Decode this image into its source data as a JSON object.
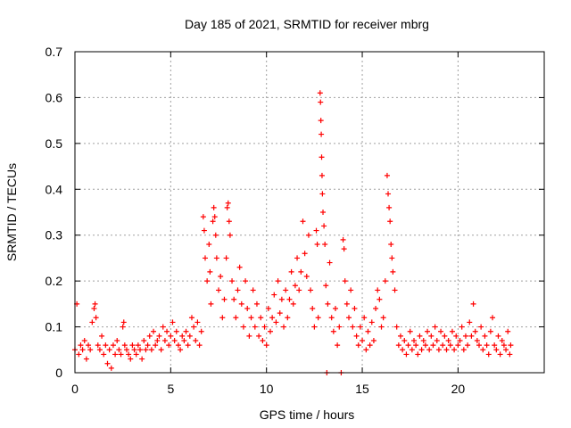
{
  "chart_data": {
    "type": "scatter",
    "title": "Day 185 of 2021, SRMTID for receiver mbrg",
    "xlabel": "GPS time / hours",
    "ylabel": "SRMTID / TECUs",
    "xlim": [
      0,
      24.5
    ],
    "ylim": [
      0,
      0.7
    ],
    "xticks": [
      0,
      5,
      10,
      15,
      20
    ],
    "xtick_labels": [
      "0",
      "5",
      "10",
      "15",
      "20"
    ],
    "yticks": [
      0,
      0.1,
      0.2,
      0.3,
      0.4,
      0.5,
      0.6,
      0.7
    ],
    "ytick_labels": [
      "0",
      "0.1",
      "0.2",
      "0.3",
      "0.4",
      "0.5",
      "0.6",
      "0.7"
    ],
    "grid": true,
    "marker": "+",
    "color": "#ff0000",
    "series": [
      {
        "name": "SRMTID",
        "points": [
          [
            0.0,
            0.05
          ],
          [
            0.1,
            0.15
          ],
          [
            0.2,
            0.04
          ],
          [
            0.3,
            0.06
          ],
          [
            0.4,
            0.05
          ],
          [
            0.5,
            0.07
          ],
          [
            0.6,
            0.03
          ],
          [
            0.7,
            0.06
          ],
          [
            0.8,
            0.05
          ],
          [
            0.9,
            0.11
          ],
          [
            1.0,
            0.14
          ],
          [
            1.05,
            0.15
          ],
          [
            1.1,
            0.12
          ],
          [
            1.2,
            0.06
          ],
          [
            1.3,
            0.05
          ],
          [
            1.4,
            0.08
          ],
          [
            1.5,
            0.04
          ],
          [
            1.6,
            0.06
          ],
          [
            1.7,
            0.02
          ],
          [
            1.8,
            0.05
          ],
          [
            1.9,
            0.01
          ],
          [
            2.0,
            0.06
          ],
          [
            2.1,
            0.04
          ],
          [
            2.2,
            0.07
          ],
          [
            2.3,
            0.05
          ],
          [
            2.4,
            0.04
          ],
          [
            2.5,
            0.1
          ],
          [
            2.55,
            0.11
          ],
          [
            2.6,
            0.06
          ],
          [
            2.7,
            0.05
          ],
          [
            2.8,
            0.04
          ],
          [
            2.9,
            0.03
          ],
          [
            3.0,
            0.06
          ],
          [
            3.1,
            0.05
          ],
          [
            3.2,
            0.04
          ],
          [
            3.3,
            0.06
          ],
          [
            3.4,
            0.05
          ],
          [
            3.5,
            0.03
          ],
          [
            3.6,
            0.07
          ],
          [
            3.7,
            0.05
          ],
          [
            3.8,
            0.06
          ],
          [
            3.9,
            0.08
          ],
          [
            4.0,
            0.05
          ],
          [
            4.1,
            0.09
          ],
          [
            4.2,
            0.06
          ],
          [
            4.3,
            0.07
          ],
          [
            4.4,
            0.08
          ],
          [
            4.5,
            0.05
          ],
          [
            4.6,
            0.1
          ],
          [
            4.7,
            0.07
          ],
          [
            4.8,
            0.09
          ],
          [
            4.9,
            0.06
          ],
          [
            5.0,
            0.08
          ],
          [
            5.1,
            0.11
          ],
          [
            5.2,
            0.07
          ],
          [
            5.3,
            0.09
          ],
          [
            5.4,
            0.06
          ],
          [
            5.5,
            0.05
          ],
          [
            5.6,
            0.08
          ],
          [
            5.7,
            0.07
          ],
          [
            5.8,
            0.09
          ],
          [
            5.9,
            0.06
          ],
          [
            6.0,
            0.08
          ],
          [
            6.1,
            0.12
          ],
          [
            6.2,
            0.1
          ],
          [
            6.3,
            0.07
          ],
          [
            6.4,
            0.11
          ],
          [
            6.5,
            0.06
          ],
          [
            6.6,
            0.09
          ],
          [
            6.7,
            0.34
          ],
          [
            6.75,
            0.31
          ],
          [
            6.8,
            0.25
          ],
          [
            6.9,
            0.2
          ],
          [
            7.0,
            0.28
          ],
          [
            7.05,
            0.22
          ],
          [
            7.1,
            0.15
          ],
          [
            7.2,
            0.33
          ],
          [
            7.25,
            0.36
          ],
          [
            7.3,
            0.34
          ],
          [
            7.35,
            0.3
          ],
          [
            7.4,
            0.25
          ],
          [
            7.5,
            0.18
          ],
          [
            7.6,
            0.21
          ],
          [
            7.7,
            0.12
          ],
          [
            7.8,
            0.16
          ],
          [
            7.9,
            0.25
          ],
          [
            7.95,
            0.36
          ],
          [
            8.0,
            0.37
          ],
          [
            8.05,
            0.33
          ],
          [
            8.1,
            0.3
          ],
          [
            8.2,
            0.2
          ],
          [
            8.3,
            0.16
          ],
          [
            8.4,
            0.12
          ],
          [
            8.5,
            0.18
          ],
          [
            8.6,
            0.23
          ],
          [
            8.7,
            0.15
          ],
          [
            8.8,
            0.1
          ],
          [
            8.9,
            0.2
          ],
          [
            9.0,
            0.14
          ],
          [
            9.1,
            0.08
          ],
          [
            9.2,
            0.12
          ],
          [
            9.3,
            0.18
          ],
          [
            9.4,
            0.1
          ],
          [
            9.5,
            0.15
          ],
          [
            9.6,
            0.08
          ],
          [
            9.7,
            0.12
          ],
          [
            9.8,
            0.07
          ],
          [
            9.9,
            0.1
          ],
          [
            10.0,
            0.06
          ],
          [
            10.1,
            0.14
          ],
          [
            10.2,
            0.09
          ],
          [
            10.3,
            0.12
          ],
          [
            10.4,
            0.17
          ],
          [
            10.5,
            0.11
          ],
          [
            10.6,
            0.2
          ],
          [
            10.7,
            0.13
          ],
          [
            10.8,
            0.16
          ],
          [
            10.9,
            0.1
          ],
          [
            11.0,
            0.18
          ],
          [
            11.1,
            0.12
          ],
          [
            11.2,
            0.16
          ],
          [
            11.3,
            0.22
          ],
          [
            11.4,
            0.15
          ],
          [
            11.5,
            0.19
          ],
          [
            11.6,
            0.25
          ],
          [
            11.7,
            0.18
          ],
          [
            11.8,
            0.22
          ],
          [
            11.9,
            0.33
          ],
          [
            12.0,
            0.26
          ],
          [
            12.1,
            0.21
          ],
          [
            12.2,
            0.3
          ],
          [
            12.3,
            0.18
          ],
          [
            12.4,
            0.14
          ],
          [
            12.5,
            0.1
          ],
          [
            12.6,
            0.31
          ],
          [
            12.65,
            0.28
          ],
          [
            12.7,
            0.12
          ],
          [
            12.8,
            0.61
          ],
          [
            12.82,
            0.59
          ],
          [
            12.84,
            0.55
          ],
          [
            12.86,
            0.52
          ],
          [
            12.88,
            0.47
          ],
          [
            12.9,
            0.43
          ],
          [
            12.92,
            0.39
          ],
          [
            12.95,
            0.35
          ],
          [
            13.0,
            0.32
          ],
          [
            13.05,
            0.28
          ],
          [
            13.1,
            0.19
          ],
          [
            13.15,
            0.0
          ],
          [
            13.2,
            0.15
          ],
          [
            13.3,
            0.24
          ],
          [
            13.4,
            0.12
          ],
          [
            13.5,
            0.09
          ],
          [
            13.6,
            0.14
          ],
          [
            13.7,
            0.06
          ],
          [
            13.8,
            0.1
          ],
          [
            13.9,
            0.0
          ],
          [
            14.0,
            0.29
          ],
          [
            14.05,
            0.27
          ],
          [
            14.1,
            0.2
          ],
          [
            14.2,
            0.15
          ],
          [
            14.3,
            0.12
          ],
          [
            14.4,
            0.18
          ],
          [
            14.5,
            0.1
          ],
          [
            14.6,
            0.14
          ],
          [
            14.7,
            0.08
          ],
          [
            14.8,
            0.06
          ],
          [
            14.9,
            0.1
          ],
          [
            15.0,
            0.07
          ],
          [
            15.1,
            0.12
          ],
          [
            15.2,
            0.05
          ],
          [
            15.3,
            0.09
          ],
          [
            15.4,
            0.06
          ],
          [
            15.5,
            0.11
          ],
          [
            15.6,
            0.07
          ],
          [
            15.7,
            0.14
          ],
          [
            15.8,
            0.18
          ],
          [
            15.9,
            0.16
          ],
          [
            16.0,
            0.1
          ],
          [
            16.1,
            0.12
          ],
          [
            16.2,
            0.2
          ],
          [
            16.3,
            0.43
          ],
          [
            16.35,
            0.39
          ],
          [
            16.4,
            0.36
          ],
          [
            16.45,
            0.33
          ],
          [
            16.5,
            0.28
          ],
          [
            16.55,
            0.25
          ],
          [
            16.6,
            0.22
          ],
          [
            16.7,
            0.18
          ],
          [
            16.8,
            0.1
          ],
          [
            16.9,
            0.06
          ],
          [
            17.0,
            0.08
          ],
          [
            17.1,
            0.05
          ],
          [
            17.2,
            0.07
          ],
          [
            17.3,
            0.04
          ],
          [
            17.4,
            0.06
          ],
          [
            17.5,
            0.09
          ],
          [
            17.6,
            0.05
          ],
          [
            17.7,
            0.07
          ],
          [
            17.8,
            0.06
          ],
          [
            17.9,
            0.04
          ],
          [
            18.0,
            0.08
          ],
          [
            18.1,
            0.05
          ],
          [
            18.2,
            0.07
          ],
          [
            18.3,
            0.06
          ],
          [
            18.4,
            0.09
          ],
          [
            18.5,
            0.05
          ],
          [
            18.6,
            0.08
          ],
          [
            18.7,
            0.06
          ],
          [
            18.8,
            0.1
          ],
          [
            18.9,
            0.07
          ],
          [
            19.0,
            0.05
          ],
          [
            19.1,
            0.09
          ],
          [
            19.2,
            0.06
          ],
          [
            19.3,
            0.08
          ],
          [
            19.4,
            0.05
          ],
          [
            19.5,
            0.07
          ],
          [
            19.6,
            0.06
          ],
          [
            19.7,
            0.09
          ],
          [
            19.8,
            0.05
          ],
          [
            19.9,
            0.08
          ],
          [
            20.0,
            0.06
          ],
          [
            20.1,
            0.07
          ],
          [
            20.2,
            0.1
          ],
          [
            20.3,
            0.05
          ],
          [
            20.4,
            0.08
          ],
          [
            20.5,
            0.06
          ],
          [
            20.6,
            0.11
          ],
          [
            20.7,
            0.08
          ],
          [
            20.8,
            0.15
          ],
          [
            20.9,
            0.09
          ],
          [
            21.0,
            0.07
          ],
          [
            21.1,
            0.06
          ],
          [
            21.2,
            0.1
          ],
          [
            21.3,
            0.05
          ],
          [
            21.4,
            0.08
          ],
          [
            21.5,
            0.06
          ],
          [
            21.6,
            0.04
          ],
          [
            21.7,
            0.09
          ],
          [
            21.8,
            0.12
          ],
          [
            21.9,
            0.06
          ],
          [
            22.0,
            0.05
          ],
          [
            22.1,
            0.08
          ],
          [
            22.2,
            0.04
          ],
          [
            22.3,
            0.07
          ],
          [
            22.4,
            0.06
          ],
          [
            22.5,
            0.05
          ],
          [
            22.6,
            0.09
          ],
          [
            22.7,
            0.04
          ],
          [
            22.75,
            0.06
          ]
        ]
      }
    ]
  }
}
